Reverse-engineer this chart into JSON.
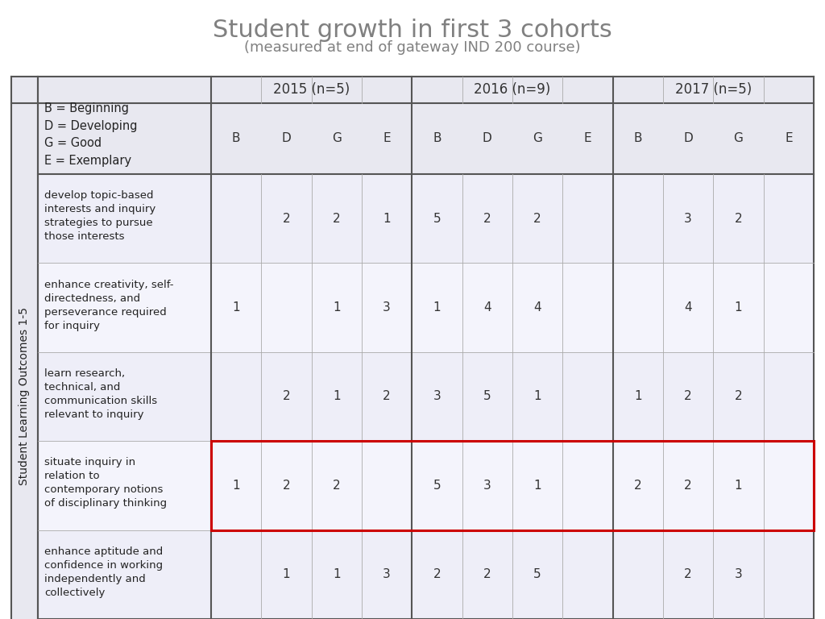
{
  "title": "Student growth in first 3 cohorts",
  "subtitle": "(measured at end of gateway IND 200 course)",
  "title_color": "#808080",
  "subtitle_color": "#808080",
  "y_axis_label": "Student Learning Outcomes 1-5",
  "cohort_headers": [
    "2015 (n=5)",
    "2016 (n=9)",
    "2017 (n=5)"
  ],
  "bdge_cols": [
    "B",
    "D",
    "G",
    "E"
  ],
  "legend_text": "B = Beginning\nD = Developing\nG = Good\nE = Exemplary",
  "rows": [
    {
      "label": "develop topic-based\ninterests and inquiry\nstrategies to pursue\nthose interests",
      "data_2015": [
        "",
        "2",
        "2",
        "1"
      ],
      "data_2016": [
        "5",
        "2",
        "2",
        ""
      ],
      "data_2017": [
        "",
        "3",
        "2",
        ""
      ],
      "highlight": false
    },
    {
      "label": "enhance creativity, self-\ndirectedness, and\nperseverance required\nfor inquiry",
      "data_2015": [
        "1",
        "",
        "1",
        "3"
      ],
      "data_2016": [
        "1",
        "4",
        "4",
        ""
      ],
      "data_2017": [
        "",
        "4",
        "1",
        ""
      ],
      "highlight": false
    },
    {
      "label": "learn research,\ntechnical, and\ncommunication skills\nrelevant to inquiry",
      "data_2015": [
        "",
        "2",
        "1",
        "2"
      ],
      "data_2016": [
        "3",
        "5",
        "1",
        ""
      ],
      "data_2017": [
        "1",
        "2",
        "2",
        ""
      ],
      "highlight": false
    },
    {
      "label": "situate inquiry in\nrelation to\ncontemporary notions\nof disciplinary thinking",
      "data_2015": [
        "1",
        "2",
        "2",
        ""
      ],
      "data_2016": [
        "5",
        "3",
        "1",
        ""
      ],
      "data_2017": [
        "2",
        "2",
        "1",
        ""
      ],
      "highlight": true
    },
    {
      "label": "enhance aptitude and\nconfidence in working\nindependently and\ncollectively",
      "data_2015": [
        "",
        "1",
        "1",
        "3"
      ],
      "data_2016": [
        "2",
        "2",
        "5",
        ""
      ],
      "data_2017": [
        "",
        "2",
        "3",
        ""
      ],
      "highlight": false
    }
  ],
  "header_bg": "#e8e8f0",
  "row_bg_even": "#eeeef8",
  "row_bg_odd": "#f4f4fc",
  "highlight_color": "#cc0000",
  "sidebar_bg": "#e8e8f0",
  "line_color_thick": "#555555",
  "line_color_thin": "#aaaaaa"
}
